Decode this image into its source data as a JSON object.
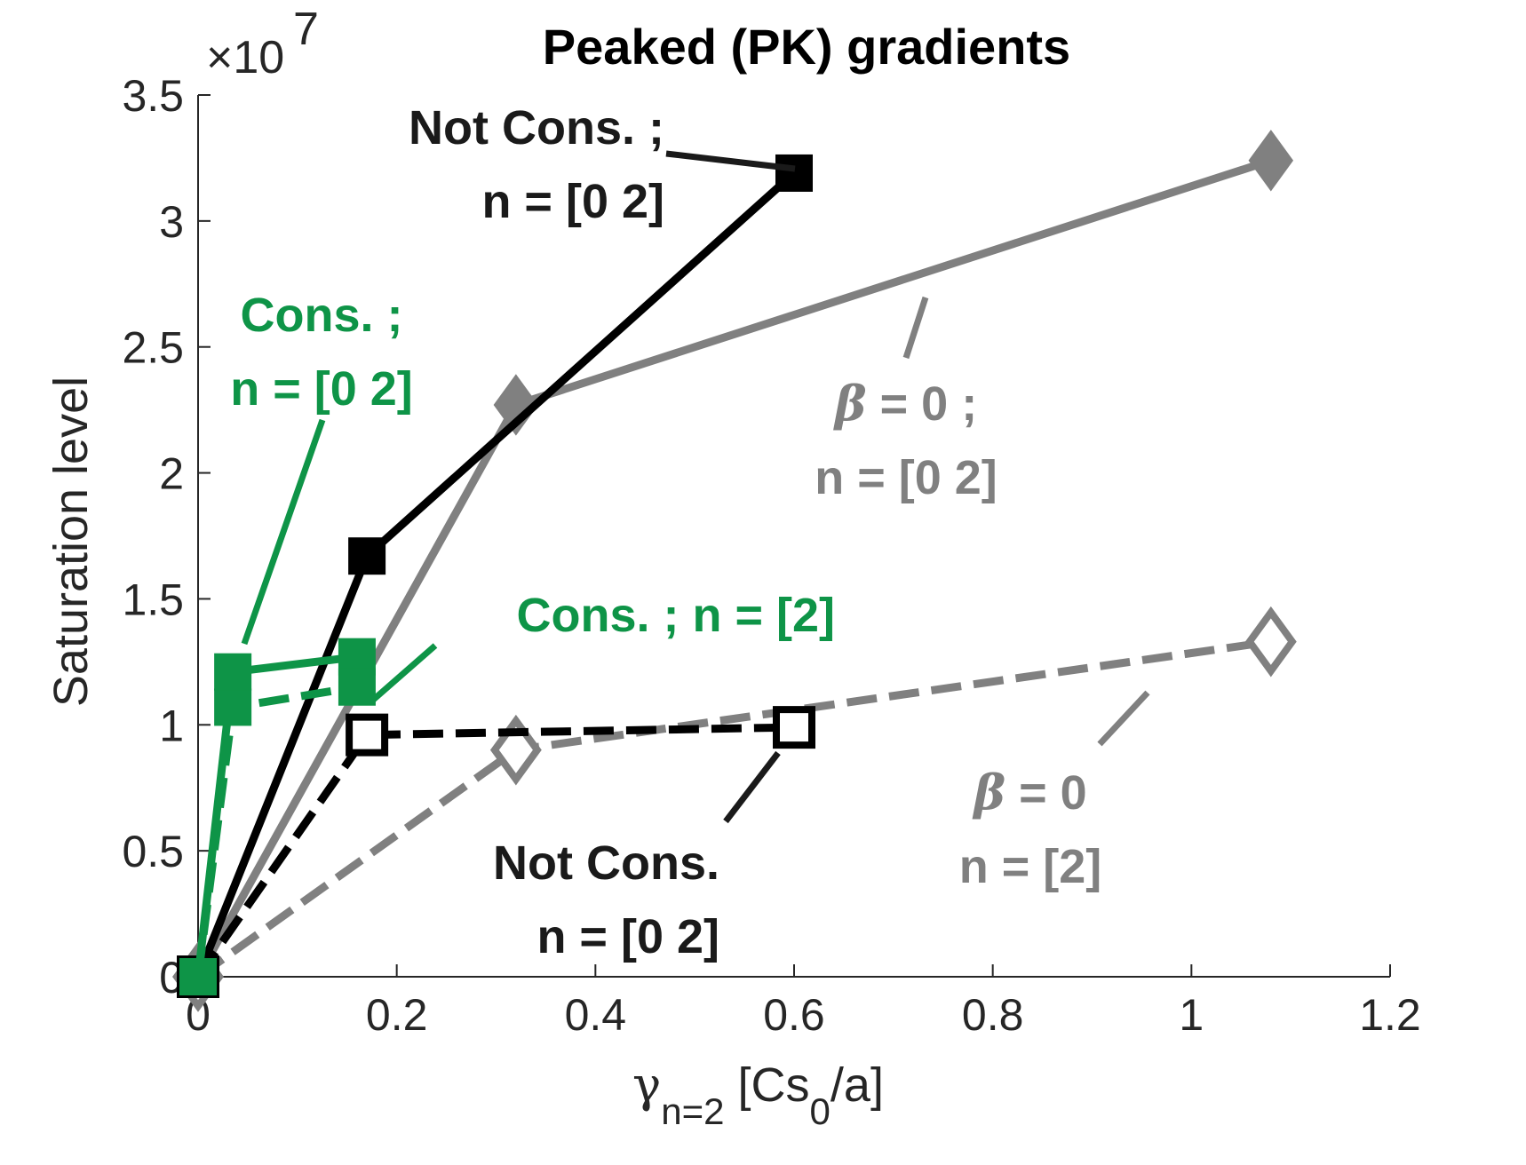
{
  "chart_data": {
    "type": "line",
    "title": "Peaked (PK) gradients",
    "xlabel": {
      "main": "γ",
      "sub": "n=2",
      "unit_open": " [Cs",
      "unit_sub": "0",
      "unit_close": "/a]"
    },
    "ylabel": "Saturation level",
    "y_multiplier": {
      "prefix": "×10",
      "exponent": "7"
    },
    "xlim": [
      0,
      1.2
    ],
    "ylim": [
      0,
      35000000.0
    ],
    "x_ticks": [
      0,
      0.2,
      0.4,
      0.6,
      0.8,
      1,
      1.2
    ],
    "x_tick_labels": [
      "0",
      "0.2",
      "0.4",
      "0.6",
      "0.8",
      "1",
      "1.2"
    ],
    "y_ticks": [
      0,
      5000000,
      10000000,
      15000000,
      20000000,
      25000000,
      30000000,
      35000000
    ],
    "y_tick_labels": [
      "0",
      "0.5",
      "1",
      "1.5",
      "2",
      "2.5",
      "3",
      "3.5"
    ],
    "grid": false,
    "series": [
      {
        "color": "#808080",
        "line": "solid",
        "marker": "diamond",
        "filled": true,
        "x": [
          0,
          0.32,
          1.08
        ],
        "y": [
          0,
          22700000,
          32400000
        ]
      },
      {
        "color": "#808080",
        "line": "dashed",
        "marker": "diamond",
        "filled": false,
        "x": [
          0,
          0.32,
          1.08
        ],
        "y": [
          0,
          9000000,
          13300000
        ]
      },
      {
        "color": "#000000",
        "line": "solid",
        "marker": "square",
        "filled": true,
        "x": [
          0,
          0.17,
          0.6
        ],
        "y": [
          0,
          16700000,
          31900000
        ]
      },
      {
        "color": "#000000",
        "line": "dashed",
        "marker": "square",
        "filled": false,
        "x": [
          0,
          0.17,
          0.6
        ],
        "y": [
          0,
          9600000,
          9900000
        ]
      },
      {
        "color": "#0E9447",
        "line": "solid",
        "marker": "square",
        "filled": true,
        "x": [
          0,
          0.035,
          0.16
        ],
        "y": [
          0,
          12100000,
          12700000
        ]
      },
      {
        "color": "#0E9447",
        "line": "dashed",
        "marker": "square",
        "filled": true,
        "x": [
          0,
          0.035,
          0.16
        ],
        "y": [
          0,
          10700000,
          11500000
        ]
      }
    ],
    "annotations": [
      {
        "lines": [
          "Not Cons. ;",
          "n = [0 2]"
        ],
        "color": "#1a1a1a"
      },
      {
        "lines": [
          "Cons. ;",
          "n = [0 2]"
        ],
        "color": "#0E9447"
      },
      {
        "lines": [
          "Cons. ; n = [2]"
        ],
        "color": "#0E9447"
      },
      {
        "lines": [
          "β = 0 ;",
          "n = [0 2]"
        ],
        "color": "#808080"
      },
      {
        "lines": [
          "β = 0",
          "n = [2]"
        ],
        "color": "#808080"
      },
      {
        "lines": [
          "Not Cons.",
          "n = [0 2]"
        ],
        "color": "#1a1a1a"
      }
    ]
  }
}
